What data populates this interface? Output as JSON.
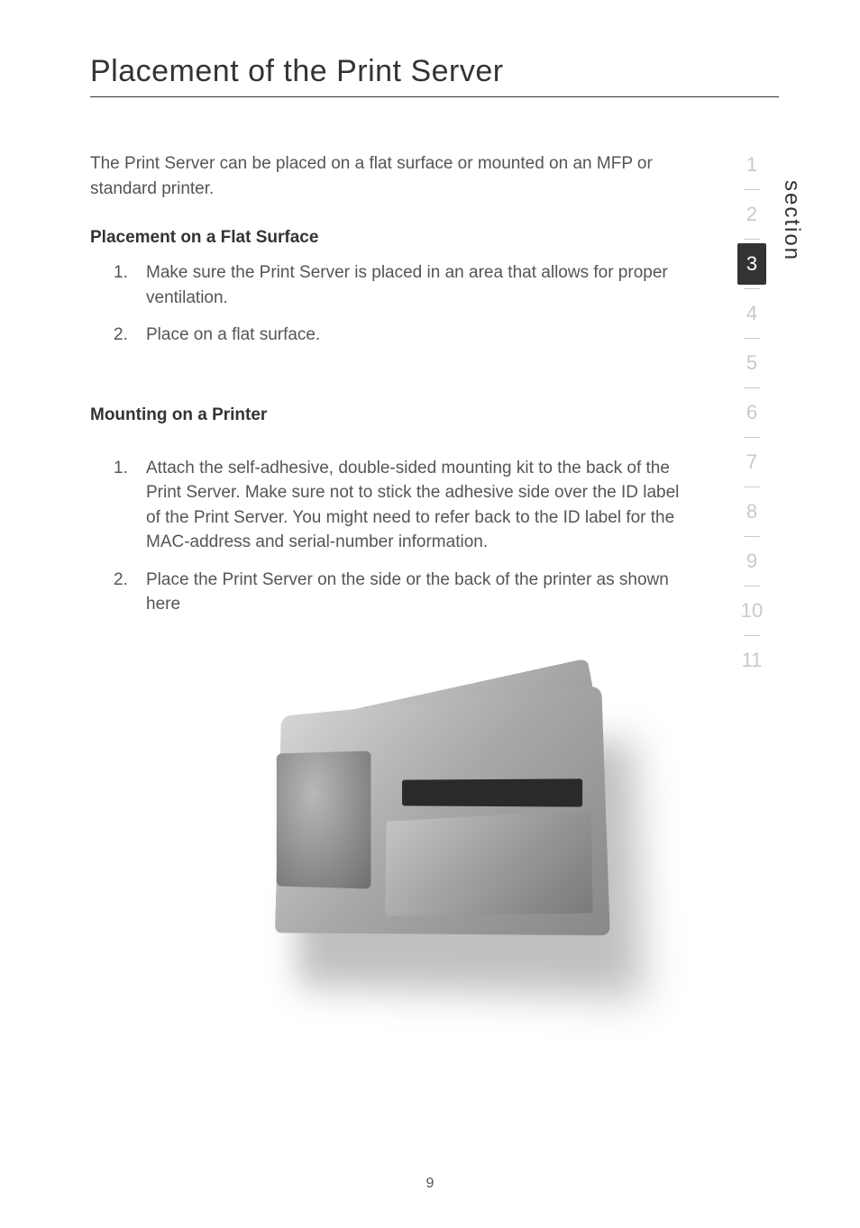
{
  "title": "Placement of the Print Server",
  "intro": "The Print Server can be placed on a flat surface or mounted on an MFP or standard printer.",
  "section1": {
    "heading": "Placement on a Flat Surface",
    "items": [
      {
        "n": "1.",
        "t": "Make sure the Print Server is placed in an area that allows for proper ventilation."
      },
      {
        "n": "2.",
        "t": "Place on a flat surface."
      }
    ]
  },
  "section2": {
    "heading": "Mounting on a Printer",
    "items": [
      {
        "n": "1.",
        "t": "Attach the self-adhesive, double-sided mounting kit to the back of the Print Server. Make sure not to stick the adhesive side over the ID label of the Print Server. You might need to refer back to the ID label for the MAC-address and serial-number information."
      },
      {
        "n": "2.",
        "t": "Place the Print Server on the side or the back of the printer as shown here"
      }
    ]
  },
  "sidebar": {
    "label": "section",
    "items": [
      "1",
      "2",
      "3",
      "4",
      "5",
      "6",
      "7",
      "8",
      "9",
      "10",
      "11"
    ],
    "active_index": 2
  },
  "page_number": "9",
  "colors": {
    "text": "#555555",
    "heading": "#333333",
    "inactive": "#c9c9c9",
    "active_bg": "#333333",
    "active_fg": "#ffffff"
  }
}
